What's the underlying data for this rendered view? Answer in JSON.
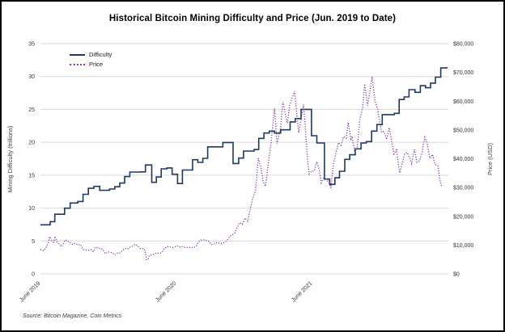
{
  "source_note": "Source: Bitcoin Magazine, Coin Metrics",
  "colors": {
    "difficulty": "#1f3864",
    "price": "#7c3aad",
    "gridline": "#d9d9d9",
    "tick_text": "#333333",
    "border": "#000000",
    "background": "#ffffff"
  },
  "chart_data": {
    "type": "line",
    "title": "Historical Bitcoin Mining Difficulty and Price (Jun. 2019 to Date)",
    "grid": "horizontal",
    "legend_position": "top-left-inside",
    "x_axis": {
      "ticks": [
        "June 2019",
        "June 2020",
        "June 2021"
      ],
      "tick_month_offsets": [
        0,
        12,
        24
      ],
      "range_months": 36,
      "range": [
        "2019-06-01",
        "2022-06-01"
      ]
    },
    "left_axis": {
      "label": "Mining Difficulty (trillions)",
      "range": [
        0,
        35
      ],
      "tick_step": 5,
      "tick_labels": [
        "35",
        "30",
        "25",
        "20",
        "15",
        "10",
        "5",
        "0"
      ]
    },
    "right_axis": {
      "label": "Price (USD)",
      "range": [
        0,
        80000
      ],
      "tick_step": 10000,
      "tick_labels": [
        "$80,000",
        "$70,000",
        "$60,000",
        "$50,000",
        "$40,000",
        "$30,000",
        "$20,000",
        "$10,000",
        "$0"
      ]
    },
    "series": [
      {
        "name": "Difficulty",
        "axis": "left",
        "unit": "trillions",
        "style": "solid-step",
        "color": "#1f3864",
        "points": [
          [
            "2019-06-01",
            7.45
          ],
          [
            "2019-06-27",
            7.93
          ],
          [
            "2019-07-09",
            9.06
          ],
          [
            "2019-08-05",
            9.99
          ],
          [
            "2019-08-20",
            10.77
          ],
          [
            "2019-09-10",
            11.0
          ],
          [
            "2019-09-24",
            12.1
          ],
          [
            "2019-10-08",
            13.0
          ],
          [
            "2019-10-23",
            13.3
          ],
          [
            "2019-11-08",
            12.7
          ],
          [
            "2019-12-04",
            12.9
          ],
          [
            "2019-12-18",
            13.24
          ],
          [
            "2020-01-01",
            13.8
          ],
          [
            "2020-01-14",
            14.78
          ],
          [
            "2020-01-28",
            15.47
          ],
          [
            "2020-02-25",
            15.5
          ],
          [
            "2020-03-09",
            16.55
          ],
          [
            "2020-03-26",
            13.91
          ],
          [
            "2020-04-08",
            14.72
          ],
          [
            "2020-04-21",
            15.96
          ],
          [
            "2020-05-06",
            16.1
          ],
          [
            "2020-05-20",
            15.14
          ],
          [
            "2020-06-04",
            13.73
          ],
          [
            "2020-06-17",
            15.78
          ],
          [
            "2020-07-14",
            17.35
          ],
          [
            "2020-07-28",
            16.95
          ],
          [
            "2020-08-11",
            17.56
          ],
          [
            "2020-08-24",
            19.31
          ],
          [
            "2020-09-20",
            19.3
          ],
          [
            "2020-10-04",
            19.97
          ],
          [
            "2020-11-01",
            16.78
          ],
          [
            "2020-11-16",
            17.6
          ],
          [
            "2020-11-29",
            18.67
          ],
          [
            "2020-12-27",
            18.9
          ],
          [
            "2021-01-09",
            20.6
          ],
          [
            "2021-01-23",
            21.4
          ],
          [
            "2021-02-07",
            21.7
          ],
          [
            "2021-02-21",
            21.4
          ],
          [
            "2021-03-07",
            21.9
          ],
          [
            "2021-04-02",
            23.1
          ],
          [
            "2021-04-16",
            23.6
          ],
          [
            "2021-05-01",
            25.0
          ],
          [
            "2021-05-29",
            21.0
          ],
          [
            "2021-06-13",
            19.9
          ],
          [
            "2021-07-03",
            14.4
          ],
          [
            "2021-07-17",
            13.6
          ],
          [
            "2021-07-31",
            14.6
          ],
          [
            "2021-08-13",
            15.6
          ],
          [
            "2021-08-27",
            17.4
          ],
          [
            "2021-09-10",
            18.1
          ],
          [
            "2021-09-25",
            19.0
          ],
          [
            "2021-10-10",
            19.9
          ],
          [
            "2021-10-24",
            20.1
          ],
          [
            "2021-11-08",
            21.7
          ],
          [
            "2021-11-22",
            22.7
          ],
          [
            "2021-12-06",
            24.2
          ],
          [
            "2022-01-08",
            24.4
          ],
          [
            "2022-01-21",
            26.5
          ],
          [
            "2022-02-04",
            26.9
          ],
          [
            "2022-02-17",
            28.0
          ],
          [
            "2022-03-03",
            27.6
          ],
          [
            "2022-03-17",
            28.6
          ],
          [
            "2022-03-31",
            28.3
          ],
          [
            "2022-04-14",
            29.0
          ],
          [
            "2022-04-27",
            29.9
          ],
          [
            "2022-05-11",
            31.3
          ]
        ]
      },
      {
        "name": "Price",
        "axis": "right",
        "unit": "USD",
        "style": "dotted",
        "color": "#7c3aad",
        "points": [
          [
            "2019-06-01",
            8500
          ],
          [
            "2019-06-08",
            8000
          ],
          [
            "2019-06-15",
            8800
          ],
          [
            "2019-06-22",
            10700
          ],
          [
            "2019-06-26",
            12900
          ],
          [
            "2019-06-29",
            11900
          ],
          [
            "2019-07-06",
            11000
          ],
          [
            "2019-07-10",
            12600
          ],
          [
            "2019-07-16",
            10900
          ],
          [
            "2019-07-20",
            10500
          ],
          [
            "2019-07-27",
            9500
          ],
          [
            "2019-08-03",
            10800
          ],
          [
            "2019-08-06",
            11800
          ],
          [
            "2019-08-13",
            11400
          ],
          [
            "2019-08-20",
            10800
          ],
          [
            "2019-08-27",
            10200
          ],
          [
            "2019-09-03",
            10600
          ],
          [
            "2019-09-10",
            10100
          ],
          [
            "2019-09-17",
            10200
          ],
          [
            "2019-09-24",
            8500
          ],
          [
            "2019-10-01",
            8300
          ],
          [
            "2019-10-08",
            8200
          ],
          [
            "2019-10-15",
            8400
          ],
          [
            "2019-10-22",
            7600
          ],
          [
            "2019-10-26",
            9200
          ],
          [
            "2019-11-02",
            9100
          ],
          [
            "2019-11-09",
            8800
          ],
          [
            "2019-11-16",
            8500
          ],
          [
            "2019-11-23",
            7000
          ],
          [
            "2019-11-30",
            7600
          ],
          [
            "2019-12-07",
            7500
          ],
          [
            "2019-12-14",
            7100
          ],
          [
            "2019-12-18",
            6600
          ],
          [
            "2019-12-25",
            7200
          ],
          [
            "2020-01-01",
            7200
          ],
          [
            "2020-01-08",
            8100
          ],
          [
            "2020-01-15",
            8800
          ],
          [
            "2020-01-22",
            8700
          ],
          [
            "2020-01-29",
            9300
          ],
          [
            "2020-02-05",
            9600
          ],
          [
            "2020-02-12",
            10300
          ],
          [
            "2020-02-19",
            9600
          ],
          [
            "2020-02-26",
            8800
          ],
          [
            "2020-03-04",
            8800
          ],
          [
            "2020-03-08",
            8000
          ],
          [
            "2020-03-12",
            4900
          ],
          [
            "2020-03-16",
            5000
          ],
          [
            "2020-03-19",
            6200
          ],
          [
            "2020-03-26",
            6700
          ],
          [
            "2020-04-02",
            6800
          ],
          [
            "2020-04-09",
            7300
          ],
          [
            "2020-04-16",
            7100
          ],
          [
            "2020-04-23",
            7500
          ],
          [
            "2020-04-30",
            8800
          ],
          [
            "2020-05-07",
            9500
          ],
          [
            "2020-05-14",
            9300
          ],
          [
            "2020-05-21",
            9100
          ],
          [
            "2020-05-28",
            9400
          ],
          [
            "2020-06-04",
            9700
          ],
          [
            "2020-06-11",
            9300
          ],
          [
            "2020-06-18",
            9400
          ],
          [
            "2020-06-25",
            9200
          ],
          [
            "2020-07-02",
            9100
          ],
          [
            "2020-07-09",
            9200
          ],
          [
            "2020-07-16",
            9100
          ],
          [
            "2020-07-23",
            9600
          ],
          [
            "2020-07-30",
            11100
          ],
          [
            "2020-08-06",
            11700
          ],
          [
            "2020-08-13",
            11800
          ],
          [
            "2020-08-20",
            11600
          ],
          [
            "2020-08-27",
            11300
          ],
          [
            "2020-09-03",
            10200
          ],
          [
            "2020-09-10",
            10300
          ],
          [
            "2020-09-17",
            10900
          ],
          [
            "2020-09-24",
            10700
          ],
          [
            "2020-10-01",
            10600
          ],
          [
            "2020-10-08",
            10900
          ],
          [
            "2020-10-15",
            11500
          ],
          [
            "2020-10-22",
            13000
          ],
          [
            "2020-10-29",
            13500
          ],
          [
            "2020-11-05",
            14100
          ],
          [
            "2020-11-12",
            16100
          ],
          [
            "2020-11-19",
            17800
          ],
          [
            "2020-11-26",
            17200
          ],
          [
            "2020-12-03",
            19400
          ],
          [
            "2020-12-10",
            18300
          ],
          [
            "2020-12-17",
            22800
          ],
          [
            "2020-12-24",
            26500
          ],
          [
            "2020-12-31",
            29000
          ],
          [
            "2021-01-08",
            40200
          ],
          [
            "2021-01-14",
            37400
          ],
          [
            "2021-01-21",
            32100
          ],
          [
            "2021-01-27",
            30400
          ],
          [
            "2021-02-03",
            37000
          ],
          [
            "2021-02-11",
            44800
          ],
          [
            "2021-02-21",
            57500
          ],
          [
            "2021-02-28",
            45200
          ],
          [
            "2021-03-07",
            50900
          ],
          [
            "2021-03-13",
            59800
          ],
          [
            "2021-03-25",
            52300
          ],
          [
            "2021-04-01",
            58700
          ],
          [
            "2021-04-14",
            63500
          ],
          [
            "2021-04-25",
            49000
          ],
          [
            "2021-05-08",
            58800
          ],
          [
            "2021-05-19",
            38500
          ],
          [
            "2021-05-23",
            34700
          ],
          [
            "2021-05-30",
            35700
          ],
          [
            "2021-06-06",
            35800
          ],
          [
            "2021-06-13",
            39000
          ],
          [
            "2021-06-20",
            35600
          ],
          [
            "2021-06-25",
            31600
          ],
          [
            "2021-07-02",
            33800
          ],
          [
            "2021-07-16",
            31500
          ],
          [
            "2021-07-20",
            29800
          ],
          [
            "2021-07-27",
            38200
          ],
          [
            "2021-08-10",
            45600
          ],
          [
            "2021-08-17",
            44700
          ],
          [
            "2021-08-24",
            47700
          ],
          [
            "2021-08-31",
            47100
          ],
          [
            "2021-09-06",
            52700
          ],
          [
            "2021-09-13",
            46400
          ],
          [
            "2021-09-16",
            47800
          ],
          [
            "2021-09-23",
            42800
          ],
          [
            "2021-09-30",
            43800
          ],
          [
            "2021-10-07",
            53900
          ],
          [
            "2021-10-14",
            57400
          ],
          [
            "2021-10-20",
            66000
          ],
          [
            "2021-10-27",
            58500
          ],
          [
            "2021-11-03",
            62900
          ],
          [
            "2021-11-09",
            68500
          ],
          [
            "2021-11-17",
            60100
          ],
          [
            "2021-11-24",
            57200
          ],
          [
            "2021-12-04",
            49200
          ],
          [
            "2021-12-11",
            49400
          ],
          [
            "2021-12-18",
            46700
          ],
          [
            "2021-12-25",
            50800
          ],
          [
            "2021-12-31",
            46200
          ],
          [
            "2022-01-07",
            41600
          ],
          [
            "2022-01-14",
            43100
          ],
          [
            "2022-01-22",
            35100
          ],
          [
            "2022-01-29",
            38200
          ],
          [
            "2022-02-05",
            41500
          ],
          [
            "2022-02-12",
            42200
          ],
          [
            "2022-02-19",
            40100
          ],
          [
            "2022-02-24",
            38300
          ],
          [
            "2022-03-01",
            43200
          ],
          [
            "2022-03-08",
            38800
          ],
          [
            "2022-03-15",
            39300
          ],
          [
            "2022-03-22",
            42400
          ],
          [
            "2022-03-29",
            47500
          ],
          [
            "2022-04-05",
            45500
          ],
          [
            "2022-04-12",
            40100
          ],
          [
            "2022-04-19",
            41500
          ],
          [
            "2022-04-26",
            38100
          ],
          [
            "2022-05-03",
            37700
          ],
          [
            "2022-05-11",
            31000
          ],
          [
            "2022-05-15",
            30100
          ]
        ]
      }
    ]
  }
}
